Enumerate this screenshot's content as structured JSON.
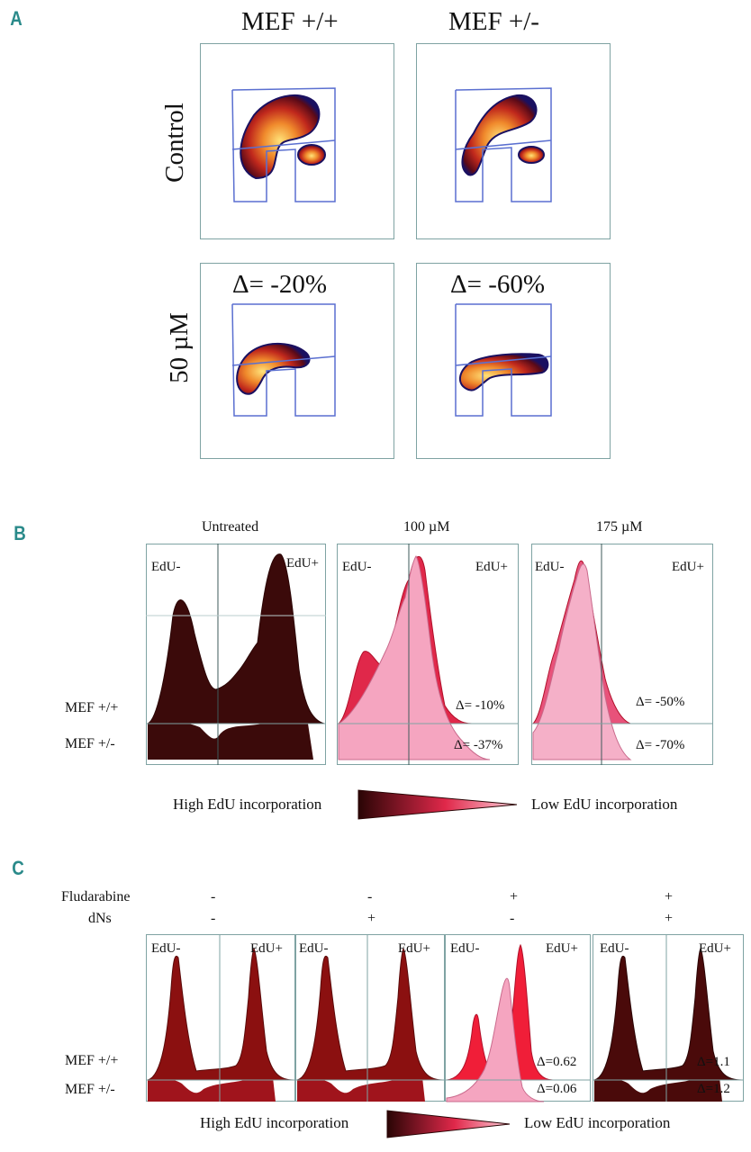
{
  "panel_a": {
    "letter": "A",
    "col_titles": [
      "MEF +/+",
      "MEF +/-"
    ],
    "row_labels": [
      "Control",
      "50 µM"
    ],
    "deltas": [
      "Δ= -20%",
      "Δ= -60%"
    ]
  },
  "panel_b": {
    "letter": "B",
    "col_titles": [
      "Untreated",
      "100 µM",
      "175 µM"
    ],
    "edu_neg": "EdU-",
    "edu_pos": "EdU+",
    "row_labels": [
      "MEF +/+",
      "MEF +/-"
    ],
    "deltas_top": [
      "Δ= -10%",
      "Δ= -50%"
    ],
    "deltas_bottom": [
      "Δ= -37%",
      "Δ= -70%"
    ],
    "legend_high": "High EdU incorporation",
    "legend_low": "Low EdU incorporation"
  },
  "panel_c": {
    "letter": "C",
    "row_fludarabine": "Fludarabine",
    "row_dns": "dNs",
    "fludarabine_values": [
      "-",
      "-",
      "+",
      "+"
    ],
    "dns_values": [
      "-",
      "+",
      "-",
      "+"
    ],
    "edu_neg": "EdU-",
    "edu_pos": "EdU+",
    "row_labels": [
      "MEF +/+",
      "MEF +/-"
    ],
    "deltas_top": [
      "Δ=0.62",
      "Δ=1.1"
    ],
    "deltas_bottom": [
      "Δ=0.06",
      "Δ=1.2"
    ],
    "legend_high": "High EdU incorporation",
    "legend_low": "Low EdU incorporation"
  },
  "colors": {
    "teal": "#2a8a8a",
    "dark_brown": "#3b0a0a",
    "crimson": "#e0284a",
    "pink": "#f5a5c0",
    "dark_red": "#8b1010",
    "gate_blue": "#5a6fd0"
  }
}
